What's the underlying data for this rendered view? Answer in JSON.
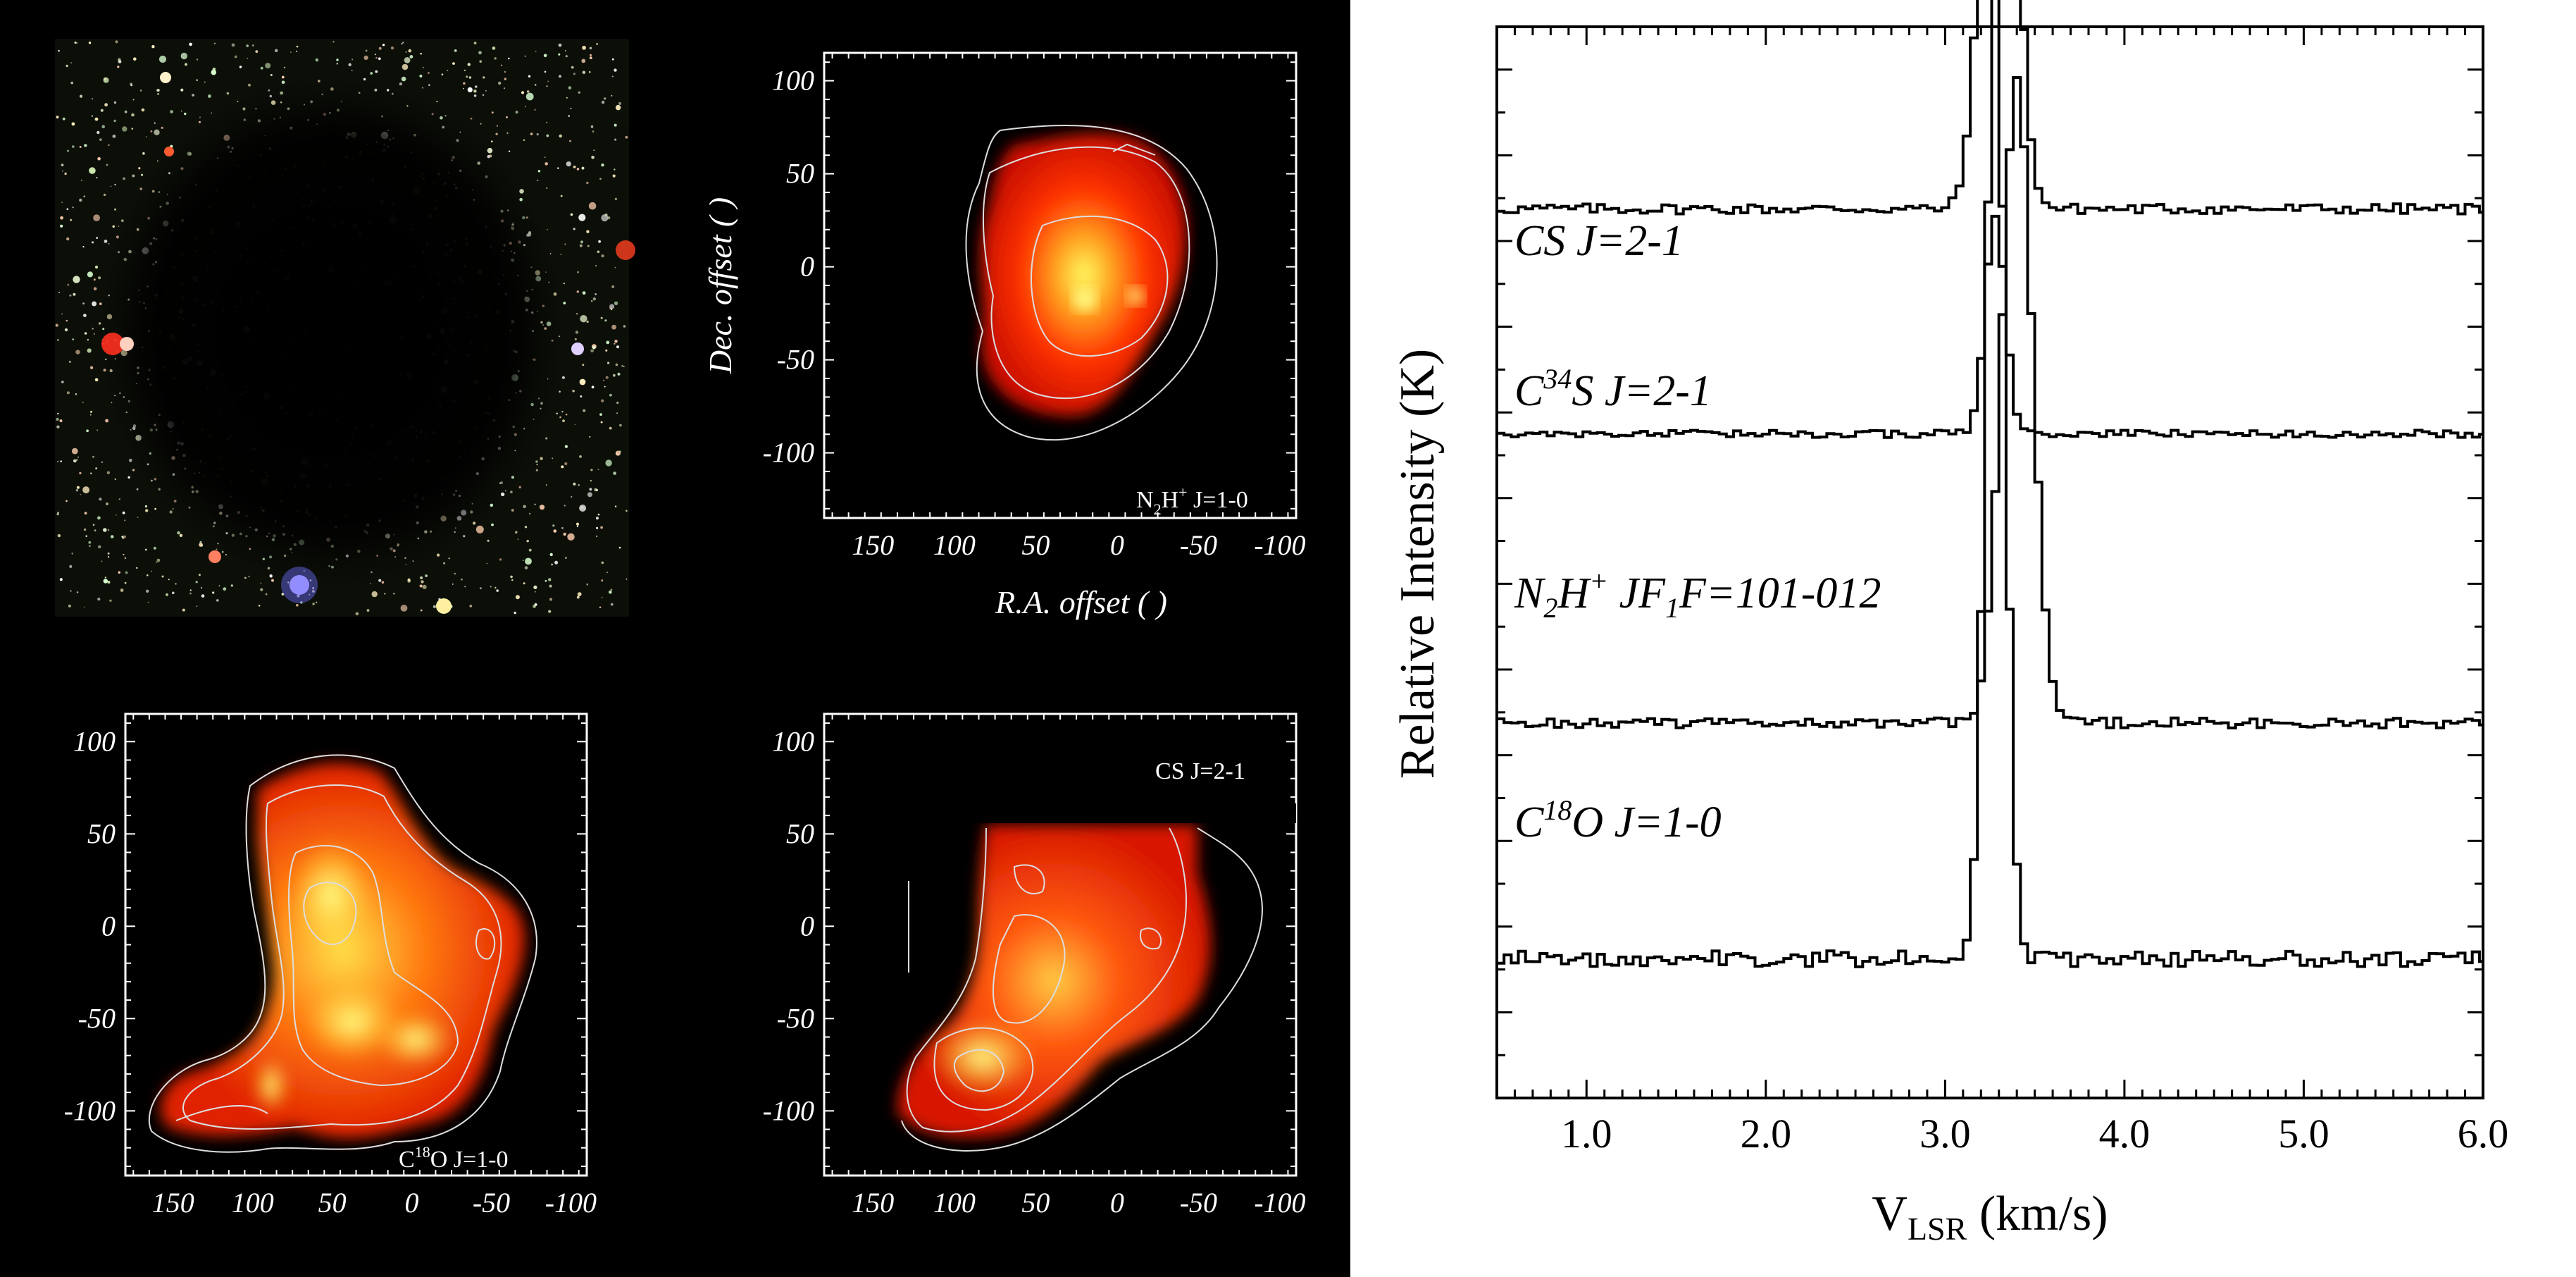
{
  "left_panels": {
    "optical_image": {
      "label": "optical image (stellar field)"
    },
    "n2h_map": {
      "label_main": "N",
      "label_sub": "2",
      "label_rest": "H",
      "label_sup": "+",
      "label_tail": " J=1-0",
      "ylabel": "Dec. offset (   )",
      "xlabel": "R.A. offset (   )"
    },
    "c18o_map": {
      "label_main": "C",
      "label_sup": "18",
      "label_tail": "O J=1-0"
    },
    "cs_map": {
      "label": "CS J=2-1"
    },
    "x_ticks": [
      "150",
      "100",
      "50",
      "0",
      "-50",
      "-100"
    ],
    "y_ticks": [
      "100",
      "50",
      "0",
      "-50",
      "-100"
    ]
  },
  "chart_data": {
    "type": "line",
    "title": "",
    "xlabel_main": "V",
    "xlabel_sub": "LSR",
    "xlabel_tail": " (km/s)",
    "ylabel": "Relative Intensity (K)",
    "xlim": [
      0.5,
      6.0
    ],
    "x_ticks": [
      "1.0",
      "2.0",
      "3.0",
      "4.0",
      "5.0",
      "6.0"
    ],
    "series": [
      {
        "name": "CS J=2-1",
        "name_parts": [
          "CS J=2-1"
        ],
        "baseline": 0.83,
        "peak_v": 3.3,
        "peak_height": 0.64,
        "width": 0.12,
        "noise": 0.13
      },
      {
        "name": "C34S J=2-1",
        "name_parts": [
          "C",
          "34",
          "S J=2-1"
        ],
        "baseline": 0.62,
        "peak_v": 3.28,
        "peak_height": 0.2,
        "width": 0.08,
        "noise": 0.09
      },
      {
        "name": "N2H+ JF1F=101-012",
        "name_parts": [
          "N",
          "2",
          "H",
          "+",
          " JF",
          "1",
          "F=101-012"
        ],
        "baseline": 0.35,
        "peak_v": 3.4,
        "peak_height": 0.6,
        "width": 0.12,
        "noise": 0.13
      },
      {
        "name": "C18O J=1-0",
        "name_parts": [
          "C",
          "18",
          "O J=1-0"
        ],
        "baseline": 0.13,
        "peak_v": 3.28,
        "peak_height": 0.9,
        "width": 0.08,
        "noise": 0.2
      }
    ]
  }
}
